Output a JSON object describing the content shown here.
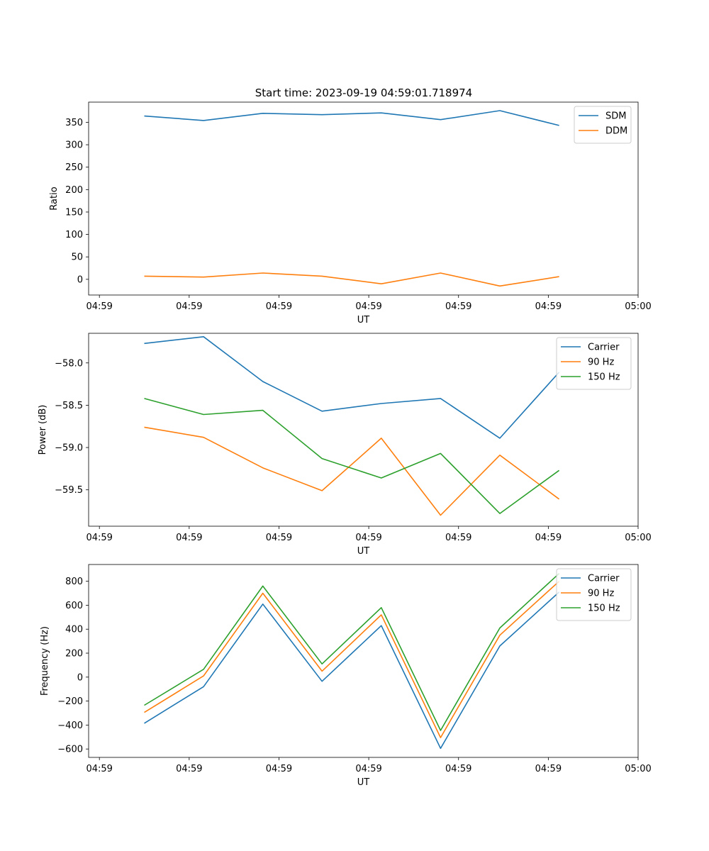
{
  "title": "Start time: 2023-09-19 04:59:01.718974",
  "colors": {
    "blue": "#1f77b4",
    "orange": "#ff7f0e",
    "green": "#2ca02c"
  },
  "chart_data": [
    {
      "type": "line",
      "xlabel": "UT",
      "ylabel": "Ratio",
      "x_tick_labels": [
        "04:59",
        "04:59",
        "04:59",
        "04:59",
        "04:59",
        "04:59",
        "04:59"
      ],
      "x_end_label": "05:00",
      "x": [
        0.5,
        1.16,
        1.82,
        2.48,
        3.14,
        3.8,
        4.46,
        5.12
      ],
      "xlim": [
        -0.12,
        6.0
      ],
      "ylim": [
        -35,
        395
      ],
      "yticks": [
        0,
        50,
        100,
        150,
        200,
        250,
        300,
        350
      ],
      "legend_location": "upper right",
      "series": [
        {
          "name": "SDM",
          "color": "#1f77b4",
          "values": [
            364,
            354,
            370,
            367,
            371,
            356,
            376,
            343
          ]
        },
        {
          "name": "DDM",
          "color": "#ff7f0e",
          "values": [
            7,
            5,
            14,
            7,
            -10,
            14,
            -15,
            6
          ]
        }
      ]
    },
    {
      "type": "line",
      "xlabel": "UT",
      "ylabel": "Power (dB)",
      "x_tick_labels": [
        "04:59",
        "04:59",
        "04:59",
        "04:59",
        "04:59",
        "04:59",
        "04:59"
      ],
      "x_end_label": "05:00",
      "x": [
        0.5,
        1.16,
        1.82,
        2.48,
        3.14,
        3.8,
        4.46,
        5.12
      ],
      "xlim": [
        -0.12,
        6.0
      ],
      "ylim": [
        -59.93,
        -57.65
      ],
      "yticks": [
        -58.0,
        -58.5,
        -59.0,
        -59.5
      ],
      "ytick_labels": [
        "−58.0",
        "−58.5",
        "−59.0",
        "−59.5"
      ],
      "legend_location": "upper right",
      "series": [
        {
          "name": "Carrier",
          "color": "#1f77b4",
          "values": [
            -57.77,
            -57.69,
            -58.22,
            -58.57,
            -58.48,
            -58.42,
            -58.89,
            -58.11
          ]
        },
        {
          "name": "90 Hz",
          "color": "#ff7f0e",
          "values": [
            -58.76,
            -58.88,
            -59.24,
            -59.51,
            -58.89,
            -59.8,
            -59.09,
            -59.61
          ]
        },
        {
          "name": "150 Hz",
          "color": "#2ca02c",
          "values": [
            -58.42,
            -58.61,
            -58.56,
            -59.13,
            -59.36,
            -59.07,
            -59.78,
            -59.27
          ]
        }
      ]
    },
    {
      "type": "line",
      "xlabel": "UT",
      "ylabel": "Frequency (Hz)",
      "x_tick_labels": [
        "04:59",
        "04:59",
        "04:59",
        "04:59",
        "04:59",
        "04:59",
        "04:59"
      ],
      "x_end_label": "05:00",
      "x": [
        0.5,
        1.16,
        1.82,
        2.48,
        3.14,
        3.8,
        4.46,
        5.12
      ],
      "xlim": [
        -0.12,
        6.0
      ],
      "ylim": [
        -670,
        940
      ],
      "yticks": [
        800,
        600,
        400,
        200,
        0,
        -200,
        -400,
        -600
      ],
      "ytick_labels": [
        "800",
        "600",
        "400",
        "200",
        "0",
        "−200",
        "−400",
        "−600"
      ],
      "legend_location": "upper right",
      "series": [
        {
          "name": "Carrier",
          "color": "#1f77b4",
          "values": [
            -385,
            -80,
            610,
            -35,
            430,
            -595,
            260,
            710
          ]
        },
        {
          "name": "90 Hz",
          "color": "#ff7f0e",
          "values": [
            -295,
            10,
            700,
            50,
            520,
            -505,
            350,
            800
          ]
        },
        {
          "name": "150 Hz",
          "color": "#2ca02c",
          "values": [
            -235,
            65,
            760,
            110,
            580,
            -445,
            410,
            865
          ]
        }
      ]
    }
  ]
}
